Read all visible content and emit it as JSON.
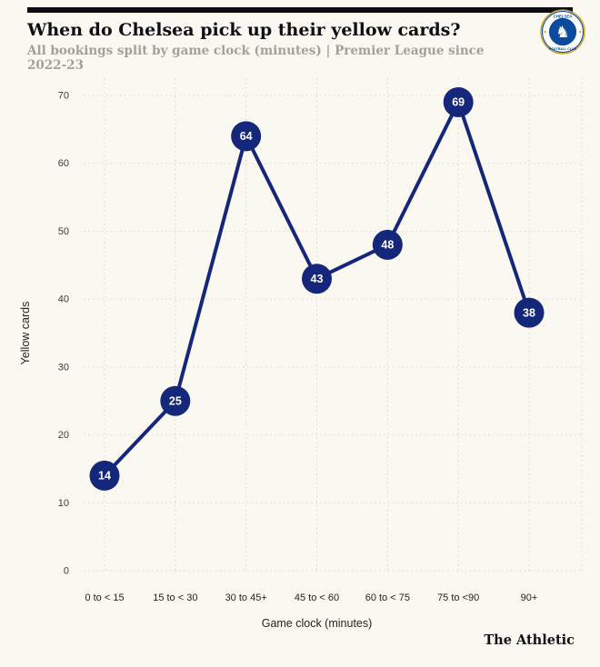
{
  "header": {
    "title": "When do Chelsea pick up their yellow cards?",
    "subtitle": "All bookings split by game clock (minutes) | Premier League since 2022-23"
  },
  "badge": {
    "club": "Chelsea FC",
    "label": "CHELSEA",
    "sub_label": "FOOTBALL CLUB"
  },
  "chart_data": {
    "type": "line",
    "categories": [
      "0 to < 15",
      "15 to < 30",
      "30 to 45+",
      "45 to < 60",
      "60 to < 75",
      "75 to <90",
      "90+"
    ],
    "values": [
      14,
      25,
      64,
      43,
      48,
      69,
      38
    ],
    "title": "",
    "xlabel": "Game clock (minutes)",
    "ylabel": "Yellow cards",
    "ylim": [
      0,
      70
    ],
    "ytick_step": 10,
    "grid": "dotted",
    "legend": "none",
    "colors": {
      "line": "#15277b",
      "marker": "#15277b",
      "marker_text": "#ffffff",
      "grid": "#d8d5cb",
      "axis_text": "#222222",
      "tick_text": "#3c3c3c",
      "background": "#faf8f1"
    }
  },
  "footer": {
    "brand": "The Athletic"
  }
}
